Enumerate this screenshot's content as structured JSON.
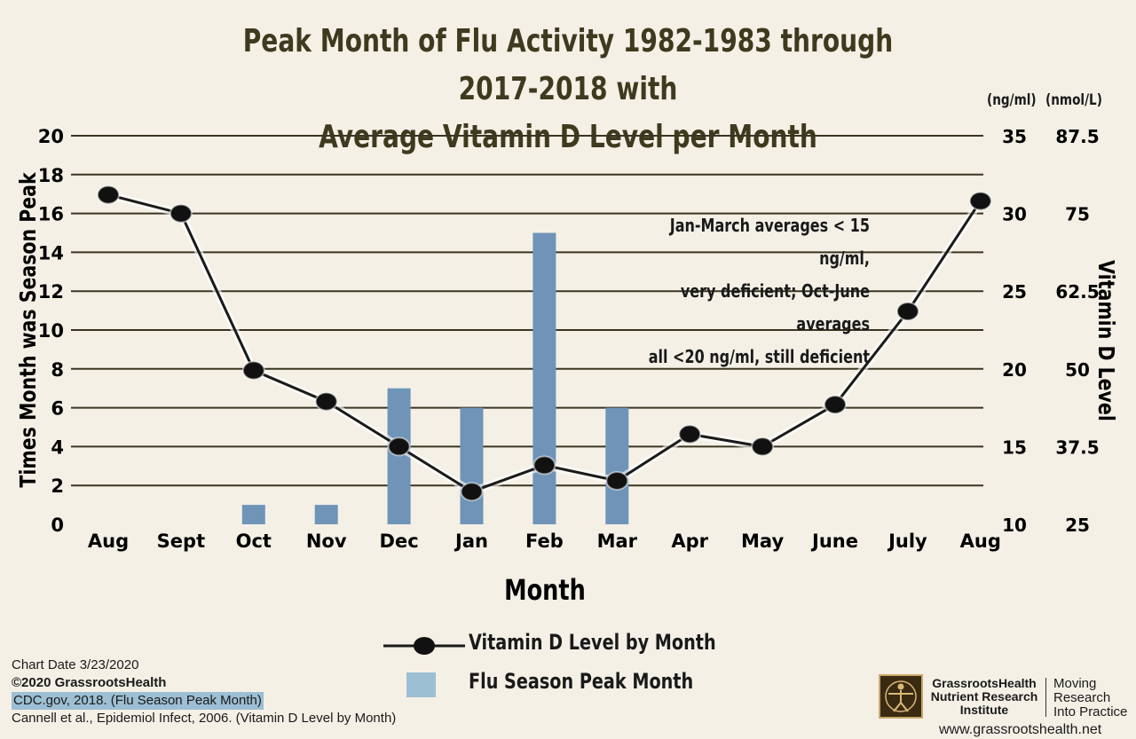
{
  "title": {
    "line1": "Peak Month of Flu Activity 1982-1983 through 2017-2018 with",
    "line2": "Average Vitamin D Level per Month"
  },
  "unit_headers": {
    "ngml": "(ng/ml)",
    "nmoll": "(nmol/L)"
  },
  "annotation": {
    "line1": "Jan-March averages < 15 ng/ml,",
    "line2": "very deficient; Oct-June averages",
    "line3": "all <20 ng/ml, still deficient"
  },
  "legend": {
    "line_label": "Vitamin D Level by Month",
    "bar_label": "Flu Season Peak Month"
  },
  "footer": {
    "chart_date": "Chart Date 3/23/2020",
    "copyright": "©2020 GrassrootsHealth",
    "source1": "CDC.gov, 2018.  (Flu Season Peak Month)",
    "source2": "Cannell et al., Epidemiol Infect, 2006.  (Vitamin D Level by Month)",
    "org_name": "GrassrootsHealth Nutrient Research Institute",
    "tagline": "Moving Research Into Practice",
    "website": "www.grassrootshealth.net"
  },
  "colors": {
    "background": "#f4f0e6",
    "bar": "#6f94b8",
    "legend_bar": "#9cbfd3",
    "line": "#1a1a1a",
    "gridline": "#3a3520",
    "title": "#3d3a1e"
  },
  "chart_data": {
    "type": "bar",
    "title": "Peak Month of Flu Activity 1982-1983 through 2017-2018 with Average Vitamin D Level per Month",
    "xlabel": "Month",
    "ylabel": "Times Month was Season Peak",
    "y2label": "Vitamin D Level",
    "categories": [
      "Aug",
      "Sept",
      "Oct",
      "Nov",
      "Dec",
      "Jan",
      "Feb",
      "Mar",
      "Apr",
      "May",
      "June",
      "July",
      "Aug"
    ],
    "ylim": [
      0,
      20
    ],
    "yticks": [
      0,
      2,
      4,
      6,
      8,
      10,
      12,
      14,
      16,
      18,
      20
    ],
    "y2lim": [
      10,
      35
    ],
    "y2ticks": [
      10,
      15,
      20,
      25,
      30,
      35
    ],
    "y3ticks": [
      25,
      37.5,
      50,
      62.5,
      75,
      87.5
    ],
    "grid": true,
    "legend_position": "bottom-center",
    "series": [
      {
        "name": "Flu Season Peak Month",
        "type": "bar",
        "axis": "left",
        "values": [
          0,
          0,
          1,
          1,
          7,
          6,
          15,
          6,
          0,
          0,
          0,
          0,
          0
        ]
      },
      {
        "name": "Vitamin D Level by Month",
        "type": "line",
        "axis": "right",
        "values": [
          31.2,
          30,
          19.9,
          17.9,
          15,
          12.1,
          13.8,
          12.8,
          15.8,
          15,
          17.7,
          23.7,
          30.8
        ]
      }
    ]
  }
}
